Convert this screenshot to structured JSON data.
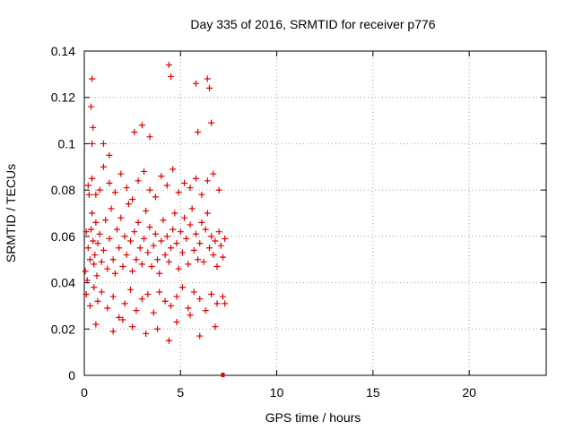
{
  "chart_data": {
    "type": "scatter",
    "title": "Day 335 of 2016, SRMTID for receiver p776",
    "xlabel": "GPS time / hours",
    "ylabel": "SRMTID / TECUs",
    "xlim": [
      0,
      24
    ],
    "ylim": [
      0,
      0.14
    ],
    "x_ticks": [
      0,
      5,
      10,
      15,
      20
    ],
    "x_tick_labels": [
      "0",
      "5",
      "10",
      "15",
      "20"
    ],
    "y_ticks": [
      0,
      0.02,
      0.04,
      0.06,
      0.08,
      0.1,
      0.12,
      0.14
    ],
    "y_tick_labels": [
      "0",
      "0.02",
      "0.04",
      "0.06",
      "0.08",
      "0.1",
      "0.12",
      "0.14"
    ],
    "grid": true,
    "marker": "+",
    "series": [
      {
        "name": "SRMTID",
        "color": "#e00000",
        "x": [
          0.05,
          0.1,
          0.15,
          0.2,
          0.25,
          0.3,
          0.35,
          0.4,
          0.45,
          0.5,
          0.55,
          0.6,
          0.65,
          0.7,
          0.8,
          0.9,
          1.0,
          1.1,
          1.2,
          1.3,
          1.4,
          1.5,
          1.6,
          1.7,
          1.8,
          1.9,
          2.0,
          2.1,
          2.2,
          2.3,
          2.4,
          2.5,
          2.6,
          2.7,
          2.8,
          2.9,
          3.0,
          3.1,
          3.2,
          3.3,
          3.4,
          3.5,
          3.6,
          3.7,
          3.8,
          3.9,
          4.0,
          4.1,
          4.2,
          4.3,
          4.4,
          4.5,
          4.6,
          4.7,
          4.8,
          4.9,
          5.0,
          5.1,
          5.2,
          5.3,
          5.4,
          5.5,
          5.6,
          5.7,
          5.8,
          5.9,
          6.0,
          6.1,
          6.2,
          6.3,
          6.4,
          6.5,
          6.6,
          6.7,
          6.8,
          6.9,
          7.0,
          7.1,
          7.2,
          7.3,
          0.1,
          0.3,
          0.5,
          0.7,
          0.9,
          1.2,
          1.5,
          1.8,
          2.1,
          2.4,
          2.7,
          3.0,
          3.3,
          3.6,
          3.9,
          4.2,
          4.5,
          4.8,
          5.1,
          5.4,
          5.7,
          6.0,
          6.3,
          6.6,
          6.9,
          7.2,
          0.2,
          0.4,
          0.6,
          0.8,
          1.0,
          1.3,
          1.6,
          1.9,
          2.2,
          2.5,
          2.8,
          3.1,
          3.4,
          3.7,
          4.0,
          4.3,
          4.6,
          4.9,
          5.2,
          5.5,
          5.8,
          6.1,
          6.4,
          6.7,
          7.0,
          0.4,
          0.35,
          0.45,
          0.4,
          1.0,
          1.3,
          2.6,
          3.0,
          3.4,
          4.4,
          4.5,
          5.8,
          5.9,
          6.4,
          6.5,
          6.6,
          0.6,
          1.5,
          2.0,
          2.5,
          3.2,
          3.8,
          4.4,
          4.8,
          5.5,
          6.0,
          6.8,
          7.3
        ],
        "y": [
          0.045,
          0.062,
          0.041,
          0.055,
          0.078,
          0.05,
          0.063,
          0.07,
          0.058,
          0.048,
          0.052,
          0.066,
          0.043,
          0.057,
          0.061,
          0.049,
          0.054,
          0.067,
          0.046,
          0.059,
          0.072,
          0.05,
          0.044,
          0.063,
          0.055,
          0.068,
          0.047,
          0.06,
          0.052,
          0.074,
          0.058,
          0.045,
          0.062,
          0.05,
          0.066,
          0.055,
          0.048,
          0.059,
          0.071,
          0.053,
          0.064,
          0.047,
          0.056,
          0.061,
          0.05,
          0.044,
          0.058,
          0.067,
          0.052,
          0.06,
          0.049,
          0.055,
          0.063,
          0.07,
          0.057,
          0.046,
          0.062,
          0.053,
          0.068,
          0.059,
          0.048,
          0.065,
          0.072,
          0.054,
          0.061,
          0.05,
          0.057,
          0.066,
          0.049,
          0.063,
          0.07,
          0.055,
          0.06,
          0.052,
          0.058,
          0.047,
          0.062,
          0.056,
          0.051,
          0.059,
          0.035,
          0.03,
          0.038,
          0.032,
          0.036,
          0.029,
          0.034,
          0.025,
          0.031,
          0.037,
          0.028,
          0.033,
          0.035,
          0.027,
          0.036,
          0.032,
          0.03,
          0.034,
          0.038,
          0.029,
          0.036,
          0.033,
          0.028,
          0.035,
          0.031,
          0.034,
          0.082,
          0.085,
          0.078,
          0.08,
          0.09,
          0.083,
          0.079,
          0.087,
          0.081,
          0.076,
          0.084,
          0.088,
          0.08,
          0.077,
          0.086,
          0.082,
          0.089,
          0.079,
          0.083,
          0.081,
          0.085,
          0.078,
          0.084,
          0.087,
          0.08,
          0.128,
          0.116,
          0.107,
          0.1,
          0.1,
          0.095,
          0.105,
          0.108,
          0.103,
          0.134,
          0.129,
          0.126,
          0.105,
          0.128,
          0.124,
          0.109,
          0.022,
          0.019,
          0.024,
          0.021,
          0.018,
          0.02,
          0.015,
          0.023,
          0.026,
          0.017,
          0.021,
          0.031
        ],
        "outlier": {
          "x": 7.2,
          "y": 0.0
        }
      }
    ]
  }
}
